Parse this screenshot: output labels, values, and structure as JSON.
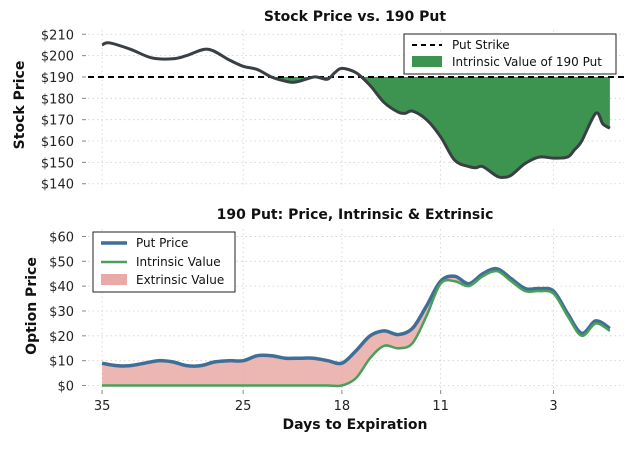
{
  "chart_data": [
    {
      "type": "area",
      "title": "Stock Price vs. 190 Put",
      "xlabel": "",
      "ylabel": "Stock Price",
      "x_reversed": true,
      "xlim": [
        36,
        -2
      ],
      "ylim": [
        138,
        212
      ],
      "yticks": [
        140,
        150,
        160,
        170,
        180,
        190,
        200,
        210
      ],
      "ytick_labels": [
        "$140",
        "$150",
        "$160",
        "$170",
        "$180",
        "$190",
        "$200",
        "$210"
      ],
      "grid": true,
      "legend_position": "top-right",
      "legend": [
        "Put Strike",
        "Intrinsic Value of 190 Put"
      ],
      "strike": 190,
      "series": [
        {
          "role": "price",
          "color": "#3a3f44",
          "x": [
            35,
            34.5,
            33,
            31.5,
            30,
            29,
            27.5,
            26,
            25,
            24,
            23,
            22,
            21.5,
            21,
            20,
            19.5,
            19,
            18.5,
            18,
            17,
            16,
            15,
            14,
            13.5,
            13,
            12,
            11,
            10,
            9,
            8.5,
            8,
            7,
            6.5,
            6,
            5,
            4,
            3,
            2,
            1.5,
            1,
            0,
            -0.5,
            -1
          ],
          "y": [
            205,
            206,
            203,
            199,
            198.5,
            200,
            203,
            198,
            195,
            193.5,
            190,
            188,
            187.5,
            188,
            190,
            189.5,
            189,
            192,
            194,
            192,
            186,
            178,
            173.5,
            173,
            174,
            170,
            162,
            151,
            148,
            147.5,
            148,
            143.5,
            143,
            144,
            149.5,
            152.5,
            152,
            152.5,
            156,
            160,
            173,
            168,
            166
          ]
        }
      ],
      "color_strike": "#000000",
      "color_fill": "#3d9450"
    },
    {
      "type": "area",
      "title": "190 Put: Price, Intrinsic & Extrinsic",
      "xlabel": "Days to Expiration",
      "ylabel": "Option Price",
      "x_reversed": true,
      "xlim": [
        36,
        -2
      ],
      "ylim": [
        -1,
        63
      ],
      "yticks": [
        0,
        10,
        20,
        30,
        40,
        50,
        60
      ],
      "ytick_labels": [
        "$0",
        "$10",
        "$20",
        "$30",
        "$40",
        "$50",
        "$60"
      ],
      "xticks": [
        35,
        25,
        18,
        11,
        3
      ],
      "xtick_labels": [
        "35",
        "25",
        "18",
        "11",
        "3"
      ],
      "grid": true,
      "legend_position": "top-left",
      "legend": [
        "Put Price",
        "Intrinsic Value",
        "Extrinsic Value"
      ],
      "series": [
        {
          "name": "Put Price",
          "color": "#3f6f96",
          "x": [
            35,
            34,
            33,
            32,
            31,
            30,
            29,
            28,
            27,
            26,
            25,
            24,
            23,
            22,
            21,
            20,
            19,
            18,
            17,
            16,
            15,
            14,
            13,
            12,
            11,
            10,
            9,
            8,
            7,
            6,
            5,
            4,
            3,
            2,
            1,
            0,
            -1
          ],
          "y": [
            9,
            8,
            8,
            9,
            10,
            9.5,
            8,
            8,
            9.5,
            10,
            10,
            12,
            12,
            11,
            11,
            11,
            10,
            9,
            14,
            20,
            22,
            20.5,
            23,
            32,
            42,
            44,
            41,
            45,
            47,
            43,
            39,
            39,
            38,
            29,
            21,
            26,
            23
          ]
        },
        {
          "name": "Intrinsic Value",
          "color": "#4aa05a",
          "x": [
            35,
            34,
            33,
            32,
            31,
            30,
            29,
            28,
            27,
            26,
            25,
            24,
            23,
            22,
            21,
            20,
            19,
            18,
            17,
            16,
            15,
            14,
            13,
            12,
            11,
            10,
            9,
            8,
            7,
            6,
            5,
            4,
            3,
            2,
            1,
            0,
            -1
          ],
          "y": [
            0,
            0,
            0,
            0,
            0,
            0,
            0,
            0,
            0,
            0,
            0,
            0,
            0,
            0,
            0,
            0,
            0,
            0,
            3,
            11,
            16,
            15,
            17,
            28,
            41,
            42,
            40,
            44,
            46,
            42,
            38,
            38,
            37,
            28,
            20,
            25,
            22
          ]
        }
      ],
      "color_extrinsic": "#e9a9a6"
    }
  ]
}
